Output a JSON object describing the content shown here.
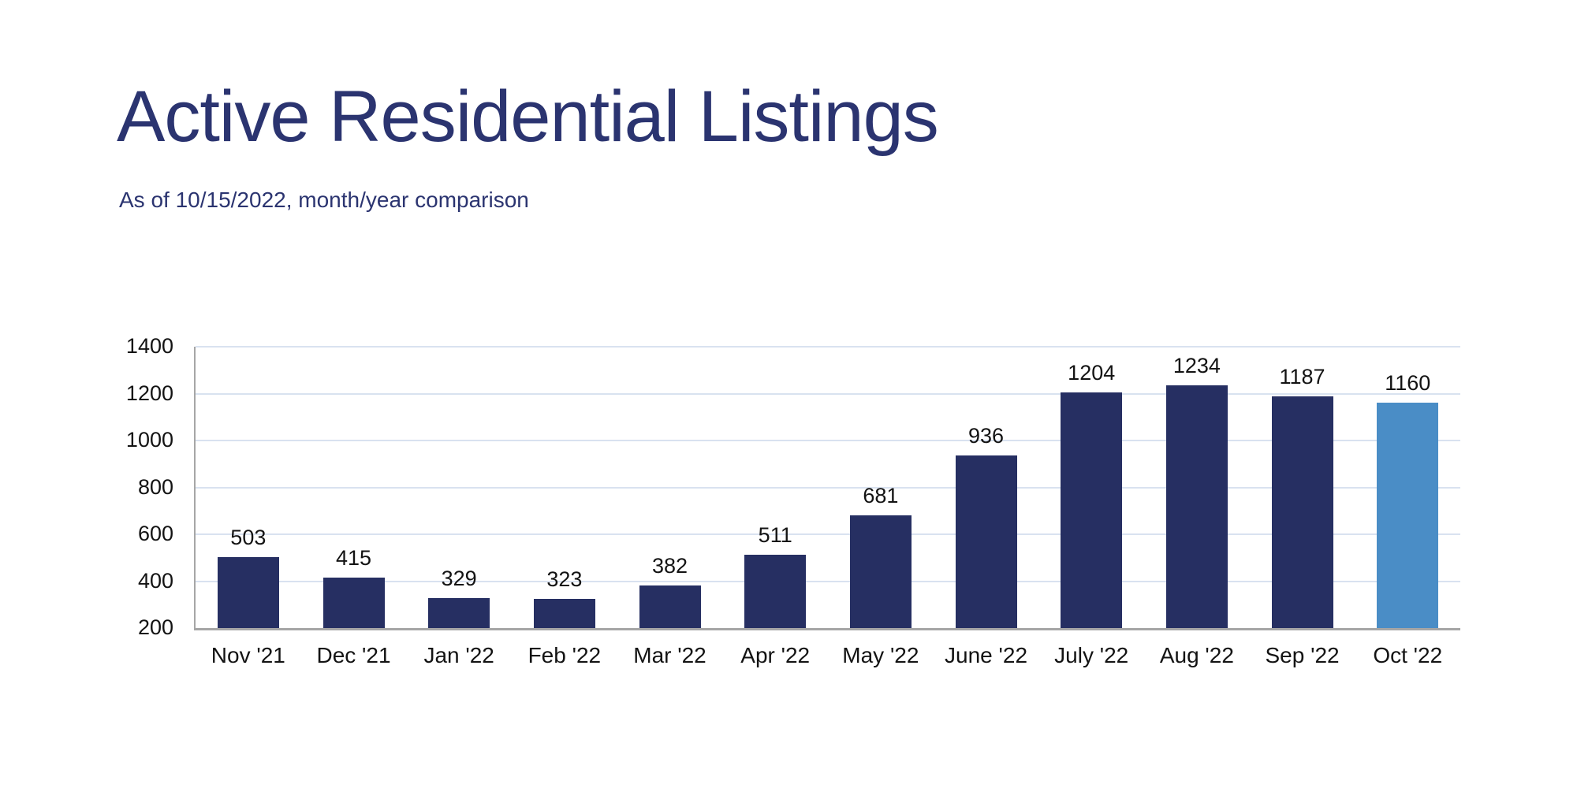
{
  "header": {
    "title": "Active Residential Listings",
    "subtitle": "As of 10/15/2022, month/year comparison"
  },
  "chart_data": {
    "type": "bar",
    "title": "Active Residential Listings",
    "subtitle": "As of 10/15/2022, month/year comparison",
    "categories": [
      "Nov '21",
      "Dec '21",
      "Jan '22",
      "Feb '22",
      "Mar '22",
      "Apr '22",
      "May '22",
      "June '22",
      "July '22",
      "Aug '22",
      "Sep '22",
      "Oct '22"
    ],
    "values": [
      503,
      415,
      329,
      323,
      382,
      511,
      681,
      936,
      1204,
      1234,
      1187,
      1160
    ],
    "data_labels": [
      503,
      415,
      329,
      323,
      382,
      511,
      681,
      936,
      1204,
      1234,
      1187,
      1160
    ],
    "highlight_index": 11,
    "xlabel": "",
    "ylabel": "",
    "ylim": [
      200,
      1400
    ],
    "y_ticks": [
      200,
      400,
      600,
      800,
      1000,
      1200,
      1400
    ],
    "grid": true,
    "legend": false,
    "colors": {
      "bar": "#262F62",
      "bar_highlight": "#4A8DC6",
      "grid_line": "#D9E2F0",
      "axis_line": "#A6A6A6",
      "value_text": "#131313",
      "title_text": "#2B3470"
    }
  }
}
